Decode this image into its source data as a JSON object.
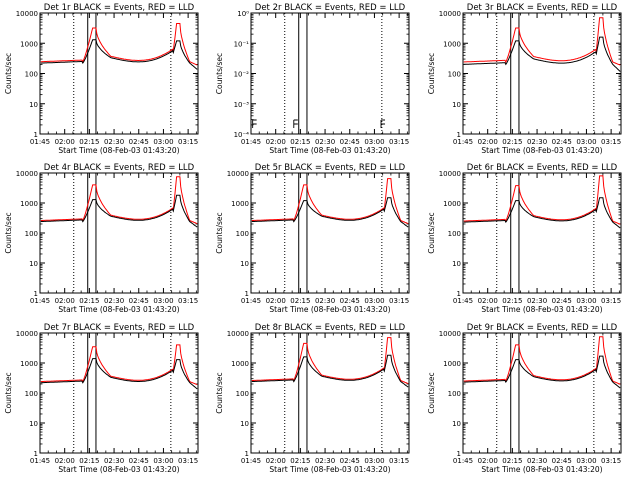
{
  "chart_data": {
    "type": "line",
    "layout": {
      "rows": 3,
      "cols": 3
    },
    "time_ticks": [
      "01:45",
      "02:00",
      "02:15",
      "02:30",
      "02:45",
      "03:00",
      "03:15"
    ],
    "time_range_minutes": [
      105,
      201
    ],
    "vertical_lines": {
      "dotted_minutes": [
        125.5,
        184.5
      ],
      "solid_minutes": [
        134,
        139
      ]
    },
    "xlabel": "Start Time (08-Feb-03 01:43:20)",
    "ylabel": "Counts/sec",
    "log_y": true,
    "grid": false,
    "colors": {
      "events": "#000000",
      "lld": "#ff0000"
    },
    "panels": [
      {
        "title": "Det 1r BLACK = Events, RED = LLD",
        "ylim": [
          1,
          10000
        ],
        "ytick_labels": [
          "1",
          "10",
          "100",
          "1000",
          "10000"
        ],
        "events": {
          "base": 220,
          "peak1": 1300,
          "peak2": 1200,
          "floor": 130
        },
        "lld": {
          "base": 245,
          "peak1": 3200,
          "peak2": 4500,
          "floor": 185
        },
        "dotted_minutes": [
          125.5,
          184.5
        ],
        "solid_minutes": [
          134,
          139
        ]
      },
      {
        "title": "Det 2r BLACK = Events, RED = LLD",
        "ylim": [
          0.0001,
          1
        ],
        "ytick_labels": [
          "10⁻⁴",
          "10⁻³",
          "10⁻²",
          "10⁻¹",
          "10⁰"
        ],
        "flat_zero": true,
        "marks_minutes": [
          106,
          131,
          184
        ],
        "dotted_minutes": [
          125.5,
          184.5
        ],
        "solid_minutes": [
          134,
          139
        ]
      },
      {
        "title": "Det 3r BLACK = Events, RED = LLD",
        "ylim": [
          1,
          10000
        ],
        "ytick_labels": [
          "1",
          "10",
          "100",
          "1000",
          "10000"
        ],
        "events": {
          "base": 200,
          "peak1": 1200,
          "peak2": 1600,
          "floor": 110
        },
        "lld": {
          "base": 240,
          "peak1": 3200,
          "peak2": 7000,
          "floor": 185
        },
        "dotted_minutes": [
          125.5,
          184.5
        ],
        "solid_minutes": [
          134,
          139
        ]
      },
      {
        "title": "Det 4r BLACK = Events, RED = LLD",
        "ylim": [
          1,
          10000
        ],
        "ytick_labels": [
          "1",
          "10",
          "100",
          "1000",
          "10000"
        ],
        "events": {
          "base": 240,
          "peak1": 1300,
          "peak2": 1800,
          "floor": 150
        },
        "lld": {
          "base": 260,
          "peak1": 4000,
          "peak2": 7500,
          "floor": 200
        },
        "dotted_minutes": [
          125.5,
          184.5
        ],
        "solid_minutes": [
          134,
          139
        ]
      },
      {
        "title": "Det 5r BLACK = Events, RED = LLD",
        "ylim": [
          1,
          10000
        ],
        "ytick_labels": [
          "1",
          "10",
          "100",
          "1000",
          "10000"
        ],
        "events": {
          "base": 240,
          "peak1": 1200,
          "peak2": 1500,
          "floor": 150
        },
        "lld": {
          "base": 260,
          "peak1": 4000,
          "peak2": 6500,
          "floor": 200
        },
        "dotted_minutes": [
          125.5,
          184.5
        ],
        "solid_minutes": [
          134,
          139
        ]
      },
      {
        "title": "Det 6r BLACK = Events, RED = LLD",
        "ylim": [
          1,
          10000
        ],
        "ytick_labels": [
          "1",
          "10",
          "100",
          "1000",
          "10000"
        ],
        "events": {
          "base": 230,
          "peak1": 1200,
          "peak2": 1500,
          "floor": 140
        },
        "lld": {
          "base": 250,
          "peak1": 3800,
          "peak2": 8000,
          "floor": 190
        },
        "dotted_minutes": [
          125.5,
          184.5
        ],
        "solid_minutes": [
          134,
          139
        ]
      },
      {
        "title": "Det 7r BLACK = Events, RED = LLD",
        "ylim": [
          1,
          10000
        ],
        "ytick_labels": [
          "1",
          "10",
          "100",
          "1000",
          "10000"
        ],
        "events": {
          "base": 220,
          "peak1": 1400,
          "peak2": 1300,
          "floor": 130
        },
        "lld": {
          "base": 240,
          "peak1": 3500,
          "peak2": 4000,
          "floor": 185
        },
        "dotted_minutes": [
          125.5,
          184.5
        ],
        "solid_minutes": [
          134,
          139
        ]
      },
      {
        "title": "Det 8r BLACK = Events, RED = LLD",
        "ylim": [
          1,
          10000
        ],
        "ytick_labels": [
          "1",
          "10",
          "100",
          "1000",
          "10000"
        ],
        "events": {
          "base": 240,
          "peak1": 1600,
          "peak2": 1800,
          "floor": 150
        },
        "lld": {
          "base": 260,
          "peak1": 4500,
          "peak2": 7000,
          "floor": 200
        },
        "dotted_minutes": [
          125.5,
          184.5
        ],
        "solid_minutes": [
          134,
          139
        ]
      },
      {
        "title": "Det 9r BLACK = Events, RED = LLD",
        "ylim": [
          1,
          10000
        ],
        "ytick_labels": [
          "1",
          "10",
          "100",
          "1000",
          "10000"
        ],
        "events": {
          "base": 230,
          "peak1": 1300,
          "peak2": 1700,
          "floor": 140
        },
        "lld": {
          "base": 250,
          "peak1": 4000,
          "peak2": 7500,
          "floor": 190
        },
        "dotted_minutes": [
          125.5,
          184.5
        ],
        "solid_minutes": [
          134,
          139
        ]
      }
    ]
  }
}
